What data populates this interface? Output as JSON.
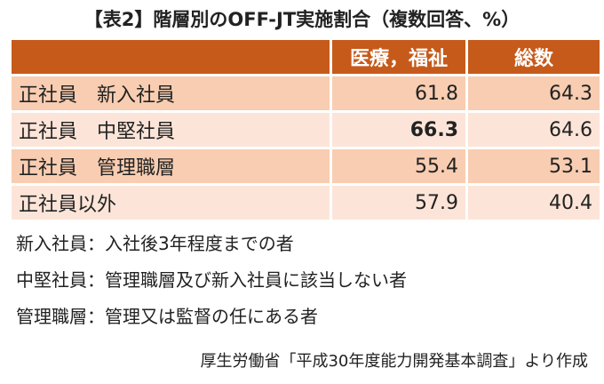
{
  "title": "【表2】階層別のOFF-JT実施割合（複数回答、%）",
  "table": {
    "header": [
      "",
      "医療，福祉",
      "総数"
    ],
    "rows": [
      [
        "正社員　新入社員",
        61.8,
        64.3
      ],
      [
        "正社員　中堅社員",
        66.3,
        64.6
      ],
      [
        "正社員　管理職層",
        55.4,
        53.1
      ],
      [
        "正社員以外",
        57.9,
        40.4
      ]
    ],
    "bold_cell": [
      1,
      1
    ]
  },
  "notes": [
    "新入社員：入社後3年程度までの者",
    "中堅社員：管理職層及び新入社員に該当しない者",
    "管理職層：管理又は監督の任にある者"
  ],
  "source": "厚生労働省「平成30年度能力開発基本調査」より作成"
}
